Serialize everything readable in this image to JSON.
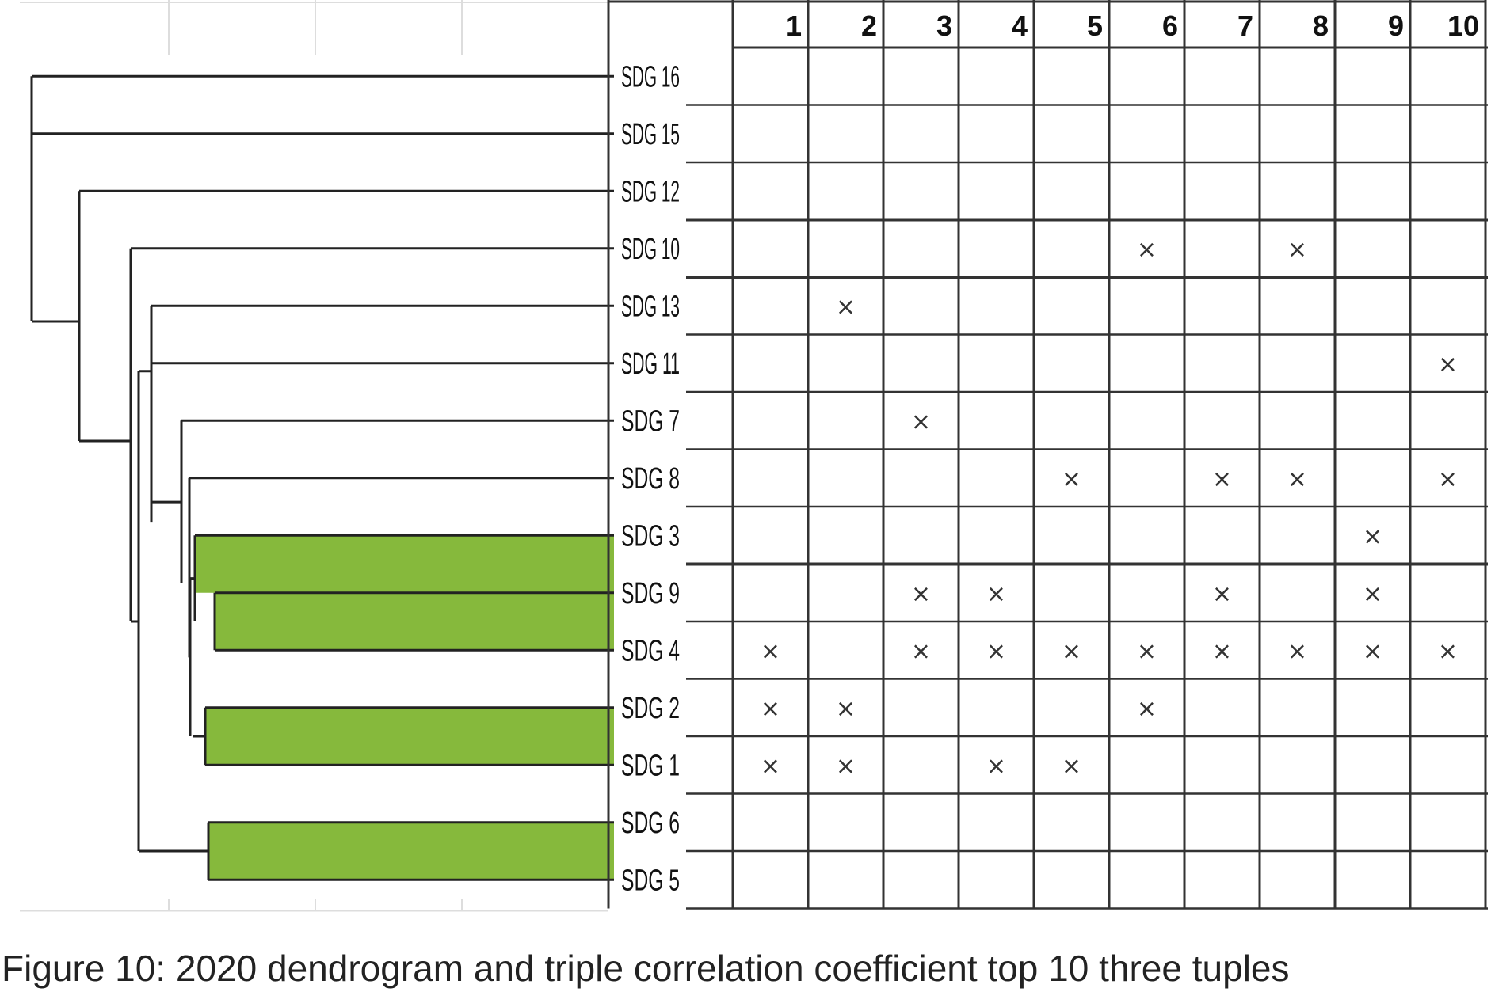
{
  "caption": "Figure 10: 2020 dendrogram and triple correlation coefficient top 10 three tuples",
  "colors": {
    "cluster_fill": "#86b93c",
    "line": "#222222",
    "grid": "#333333",
    "faint": "#dddddd"
  },
  "chart_data": {
    "type": "table",
    "title": "Figure 10: 2020 dendrogram and triple correlation coefficient top 10 three tuples",
    "dendrogram": {
      "leaves": [
        "SDG 16",
        "SDG 15",
        "SDG 12",
        "SDG 10",
        "SDG 13",
        "SDG 11",
        "SDG 7",
        "SDG 8",
        "SDG 3",
        "SDG 9",
        "SDG 4",
        "SDG 2",
        "SDG 1",
        "SDG 6",
        "SDG 5"
      ],
      "highlighted_clusters": [
        [
          "SDG 3",
          "SDG 9",
          "SDG 4"
        ],
        [
          "SDG 2",
          "SDG 1"
        ],
        [
          "SDG 6",
          "SDG 5"
        ]
      ]
    },
    "columns": [
      "1",
      "2",
      "3",
      "4",
      "5",
      "6",
      "7",
      "8",
      "9",
      "10"
    ],
    "rows": [
      {
        "label": "SDG 16",
        "marks": []
      },
      {
        "label": "SDG 15",
        "marks": []
      },
      {
        "label": "SDG 12",
        "marks": []
      },
      {
        "label": "SDG 10",
        "marks": [
          6,
          8
        ]
      },
      {
        "label": "SDG 13",
        "marks": [
          2
        ]
      },
      {
        "label": "SDG 11",
        "marks": [
          10
        ]
      },
      {
        "label": "SDG 7",
        "marks": [
          3
        ]
      },
      {
        "label": "SDG 8",
        "marks": [
          5,
          7,
          8,
          10
        ]
      },
      {
        "label": "SDG 3",
        "marks": [
          9
        ]
      },
      {
        "label": "SDG 9",
        "marks": [
          3,
          4,
          7,
          9
        ]
      },
      {
        "label": "SDG 4",
        "marks": [
          1,
          3,
          4,
          5,
          6,
          7,
          8,
          9,
          10
        ]
      },
      {
        "label": "SDG 2",
        "marks": [
          1,
          2,
          6
        ]
      },
      {
        "label": "SDG 1",
        "marks": [
          1,
          2,
          4,
          5
        ]
      },
      {
        "label": "SDG 6",
        "marks": []
      },
      {
        "label": "SDG 5",
        "marks": []
      }
    ],
    "mark_symbol": "×"
  }
}
